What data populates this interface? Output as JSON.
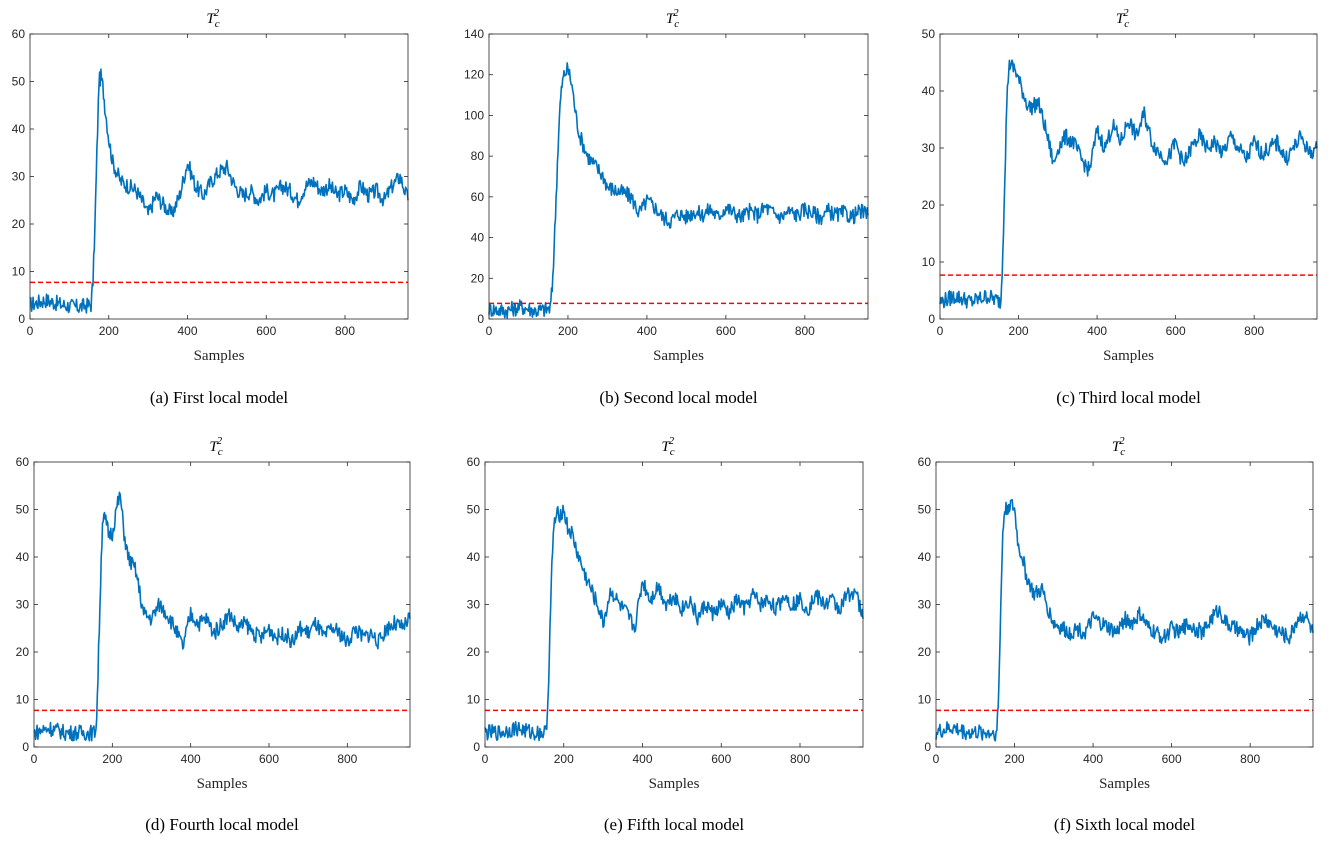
{
  "figure": {
    "panels": [
      {
        "caption": "(a) First local model",
        "chart_data": {
          "type": "line",
          "title": "T_c^2",
          "title_base": "T",
          "title_sub": "c",
          "title_sup": "2",
          "xlabel": "Samples",
          "ylabel": "",
          "xlim": [
            0,
            960
          ],
          "ylim": [
            0,
            60
          ],
          "xticks": [
            0,
            200,
            400,
            600,
            800
          ],
          "yticks": [
            0,
            10,
            20,
            30,
            40,
            50,
            60
          ],
          "threshold": 7.7,
          "series": [
            {
              "values_x": [
                0,
                40,
                80,
                120,
                155,
                160,
                165,
                170,
                175,
                180,
                185,
                190,
                200,
                210,
                220,
                230,
                250,
                270,
                290,
                300,
                320,
                340,
                360,
                380,
                400,
                420,
                440,
                460,
                480,
                500,
                520,
                540,
                560,
                580,
                600,
                620,
                640,
                660,
                680,
                700,
                720,
                740,
                760,
                780,
                800,
                820,
                840,
                860,
                880,
                900,
                920,
                940,
                960
              ],
              "values_y": [
                3,
                4,
                3,
                2.5,
                3,
                8,
                20,
                35,
                50,
                51,
                49,
                45,
                38,
                33,
                31,
                29,
                28,
                27,
                24,
                22,
                26,
                24,
                22,
                26,
                33,
                28,
                26,
                29,
                31,
                32,
                28,
                26,
                27,
                25,
                27,
                26,
                28,
                27,
                25,
                28,
                29,
                27,
                28,
                26,
                27,
                25,
                28,
                26,
                27,
                25,
                28,
                30,
                25
              ]
            }
          ],
          "colors": {
            "line": "#0072BD",
            "threshold": "#FF0000"
          }
        }
      },
      {
        "caption": "(b) Second local model",
        "chart_data": {
          "type": "line",
          "title": "T_c^2",
          "title_base": "T",
          "title_sub": "c",
          "title_sup": "2",
          "xlabel": "Samples",
          "ylabel": "",
          "xlim": [
            0,
            960
          ],
          "ylim": [
            0,
            140
          ],
          "xticks": [
            0,
            200,
            400,
            600,
            800
          ],
          "yticks": [
            0,
            20,
            40,
            60,
            80,
            100,
            120,
            140
          ],
          "threshold": 7.7,
          "series": [
            {
              "values_x": [
                0,
                40,
                80,
                120,
                155,
                160,
                165,
                170,
                175,
                180,
                185,
                190,
                200,
                210,
                220,
                230,
                250,
                270,
                290,
                300,
                320,
                340,
                360,
                380,
                400,
                420,
                440,
                460,
                480,
                500,
                520,
                540,
                560,
                580,
                600,
                620,
                640,
                660,
                680,
                700,
                720,
                740,
                760,
                780,
                800,
                820,
                840,
                860,
                880,
                900,
                920,
                940,
                960
              ],
              "values_y": [
                5,
                4,
                6,
                4,
                5,
                15,
                35,
                60,
                85,
                105,
                115,
                120,
                123,
                115,
                100,
                90,
                80,
                75,
                70,
                65,
                63,
                62,
                60,
                52,
                58,
                55,
                50,
                48,
                52,
                50,
                53,
                51,
                54,
                50,
                55,
                52,
                50,
                53,
                51,
                55,
                52,
                50,
                53,
                51,
                54,
                52,
                50,
                53,
                51,
                52,
                50,
                53,
                51
              ]
            }
          ],
          "colors": {
            "line": "#0072BD",
            "threshold": "#FF0000"
          }
        }
      },
      {
        "caption": "(c) Third local model",
        "chart_data": {
          "type": "line",
          "title": "T_c^2",
          "title_base": "T",
          "title_sub": "c",
          "title_sup": "2",
          "xlabel": "Samples",
          "ylabel": "",
          "xlim": [
            0,
            960
          ],
          "ylim": [
            0,
            50
          ],
          "xticks": [
            0,
            200,
            400,
            600,
            800
          ],
          "yticks": [
            0,
            10,
            20,
            30,
            40,
            50
          ],
          "threshold": 7.7,
          "series": [
            {
              "values_x": [
                0,
                40,
                80,
                120,
                155,
                160,
                165,
                170,
                175,
                180,
                185,
                190,
                200,
                210,
                220,
                230,
                250,
                270,
                290,
                300,
                320,
                340,
                360,
                380,
                400,
                420,
                440,
                460,
                480,
                500,
                520,
                540,
                560,
                580,
                600,
                620,
                640,
                660,
                680,
                700,
                720,
                740,
                760,
                780,
                800,
                820,
                840,
                860,
                880,
                900,
                920,
                940,
                960
              ],
              "values_y": [
                3,
                4,
                3,
                4,
                3,
                12,
                25,
                38,
                44,
                45,
                44,
                44,
                42,
                40,
                38,
                37,
                38,
                33,
                27,
                30,
                32,
                31,
                28,
                26,
                33,
                30,
                34,
                31,
                35,
                32,
                36,
                31,
                29,
                28,
                31,
                27,
                30,
                32,
                30,
                31,
                29,
                32,
                30,
                28,
                31,
                29,
                30,
                31,
                28,
                30,
                32,
                29,
                30
              ]
            }
          ],
          "colors": {
            "line": "#0072BD",
            "threshold": "#FF0000"
          }
        }
      },
      {
        "caption": "(d) Fourth local model",
        "chart_data": {
          "type": "line",
          "title": "T_c^2",
          "title_base": "T",
          "title_sub": "c",
          "title_sup": "2",
          "xlabel": "Samples",
          "ylabel": "",
          "xlim": [
            0,
            960
          ],
          "ylim": [
            0,
            60
          ],
          "xticks": [
            0,
            200,
            400,
            600,
            800
          ],
          "yticks": [
            0,
            10,
            20,
            30,
            40,
            50,
            60
          ],
          "threshold": 7.7,
          "series": [
            {
              "values_x": [
                0,
                40,
                80,
                120,
                155,
                160,
                165,
                170,
                175,
                180,
                185,
                190,
                200,
                210,
                220,
                230,
                240,
                260,
                280,
                300,
                320,
                340,
                360,
                380,
                400,
                420,
                440,
                460,
                480,
                500,
                520,
                540,
                560,
                580,
                600,
                620,
                640,
                660,
                680,
                700,
                720,
                740,
                760,
                780,
                800,
                820,
                840,
                860,
                880,
                900,
                920,
                940,
                960
              ],
              "values_y": [
                3,
                4,
                3,
                3,
                3,
                6,
                20,
                35,
                48,
                48,
                47,
                45,
                45,
                50,
                53,
                45,
                40,
                37,
                28,
                27,
                30,
                28,
                25,
                21,
                28,
                26,
                27,
                24,
                26,
                28,
                25,
                26,
                24,
                23,
                25,
                23,
                24,
                22,
                25,
                24,
                26,
                23,
                25,
                24,
                22,
                25,
                23,
                24,
                22,
                25,
                26,
                25,
                27
              ]
            }
          ],
          "colors": {
            "line": "#0072BD",
            "threshold": "#FF0000"
          }
        }
      },
      {
        "caption": "(e) Fifth local model",
        "chart_data": {
          "type": "line",
          "title": "T_c^2",
          "title_base": "T",
          "title_sub": "c",
          "title_sup": "2",
          "xlabel": "Samples",
          "ylabel": "",
          "xlim": [
            0,
            960
          ],
          "ylim": [
            0,
            60
          ],
          "xticks": [
            0,
            200,
            400,
            600,
            800
          ],
          "yticks": [
            0,
            10,
            20,
            30,
            40,
            50,
            60
          ],
          "threshold": 7.7,
          "series": [
            {
              "values_x": [
                0,
                40,
                80,
                120,
                155,
                160,
                165,
                170,
                175,
                180,
                185,
                190,
                200,
                210,
                220,
                230,
                250,
                270,
                290,
                300,
                320,
                340,
                360,
                380,
                400,
                420,
                440,
                460,
                480,
                500,
                520,
                540,
                560,
                580,
                600,
                620,
                640,
                660,
                680,
                700,
                720,
                740,
                760,
                780,
                800,
                820,
                840,
                860,
                880,
                900,
                920,
                940,
                960
              ],
              "values_y": [
                3,
                3,
                4,
                3,
                3,
                10,
                25,
                38,
                47,
                48,
                49,
                49,
                50,
                46,
                45,
                42,
                37,
                33,
                29,
                26,
                33,
                30,
                28,
                25,
                35,
                31,
                34,
                30,
                32,
                29,
                31,
                27,
                30,
                28,
                30,
                28,
                31,
                29,
                32,
                30,
                31,
                29,
                32,
                30,
                31,
                29,
                32,
                30,
                31,
                29,
                32,
                33,
                27
              ]
            }
          ],
          "colors": {
            "line": "#0072BD",
            "threshold": "#FF0000"
          }
        }
      },
      {
        "caption": "(f) Sixth local model",
        "chart_data": {
          "type": "line",
          "title": "T_c^2",
          "title_base": "T",
          "title_sub": "c",
          "title_sup": "2",
          "xlabel": "Samples",
          "ylabel": "",
          "xlim": [
            0,
            960
          ],
          "ylim": [
            0,
            60
          ],
          "xticks": [
            0,
            200,
            400,
            600,
            800
          ],
          "yticks": [
            0,
            10,
            20,
            30,
            40,
            50,
            60
          ],
          "threshold": 7.7,
          "series": [
            {
              "values_x": [
                0,
                40,
                80,
                120,
                155,
                160,
                165,
                170,
                175,
                180,
                185,
                190,
                200,
                210,
                220,
                230,
                250,
                270,
                290,
                300,
                320,
                340,
                360,
                380,
                400,
                420,
                440,
                460,
                480,
                500,
                520,
                540,
                560,
                580,
                600,
                620,
                640,
                660,
                680,
                700,
                720,
                740,
                760,
                780,
                800,
                820,
                840,
                860,
                880,
                900,
                920,
                940,
                960
              ],
              "values_y": [
                3,
                4,
                3,
                3,
                3,
                12,
                30,
                45,
                50,
                50,
                51,
                51,
                50,
                42,
                40,
                36,
                32,
                33,
                28,
                26,
                25,
                24,
                25,
                24,
                27,
                26,
                25,
                24,
                27,
                26,
                28,
                25,
                24,
                23,
                25,
                24,
                26,
                25,
                24,
                27,
                29,
                26,
                25,
                24,
                23,
                26,
                27,
                25,
                24,
                23,
                27,
                28,
                24
              ]
            }
          ],
          "colors": {
            "line": "#0072BD",
            "threshold": "#FF0000"
          }
        }
      }
    ]
  }
}
